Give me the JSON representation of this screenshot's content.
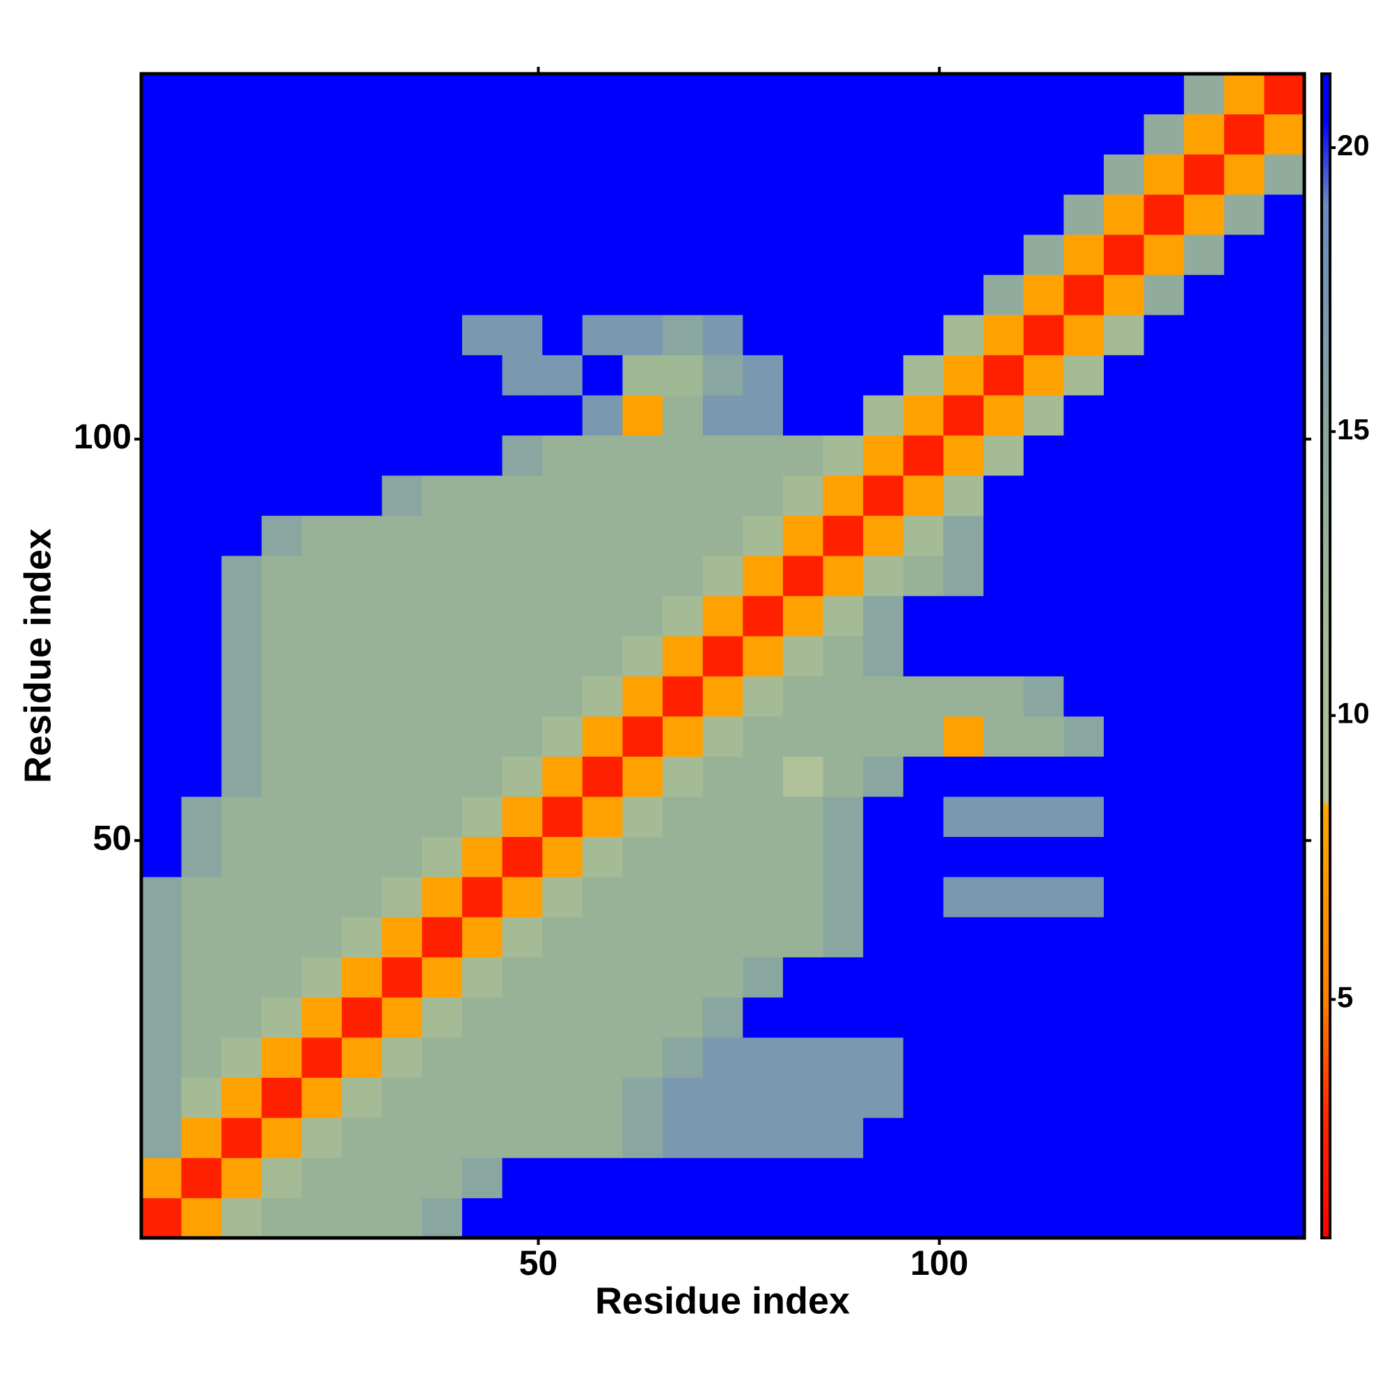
{
  "chart_data": {
    "type": "heatmap",
    "x_label": "Residue index",
    "y_label": "Residue index",
    "xlim": [
      0.5,
      145.5
    ],
    "ylim": [
      0.5,
      145.5
    ],
    "xticks": [
      50,
      100
    ],
    "yticks": [
      50,
      100
    ],
    "x": [
      3,
      8,
      13,
      18,
      23,
      28,
      33,
      38,
      43,
      48,
      53,
      58,
      63,
      68,
      73,
      78,
      83,
      88,
      93,
      98,
      103,
      108,
      113,
      118,
      123,
      128,
      133,
      138,
      143
    ],
    "y": [
      3,
      8,
      13,
      18,
      23,
      28,
      33,
      38,
      43,
      48,
      53,
      58,
      63,
      68,
      73,
      78,
      83,
      88,
      93,
      98,
      103,
      108,
      113,
      118,
      123,
      128,
      133,
      138,
      143
    ],
    "values": [
      [
        2.5,
        8,
        11,
        13,
        13,
        13,
        13,
        15,
        21,
        21,
        21,
        21,
        21,
        21,
        21,
        21,
        21,
        21,
        21,
        21,
        21,
        21,
        21,
        21,
        21,
        21,
        21,
        21,
        21
      ],
      [
        8,
        2.5,
        8,
        11,
        13,
        13,
        13,
        13,
        15,
        21,
        21,
        21,
        21,
        21,
        21,
        21,
        21,
        21,
        21,
        21,
        21,
        21,
        21,
        21,
        21,
        21,
        21,
        21,
        21
      ],
      [
        15,
        8,
        2.5,
        8,
        11,
        13,
        13,
        13,
        13,
        13,
        13,
        13,
        15,
        17,
        17,
        17,
        17,
        17,
        21,
        21,
        21,
        21,
        21,
        21,
        21,
        21,
        21,
        21,
        21
      ],
      [
        15,
        11,
        8,
        2.5,
        8,
        11,
        13,
        13,
        13,
        13,
        13,
        13,
        15,
        17,
        17,
        17,
        17,
        17,
        17,
        21,
        21,
        21,
        21,
        21,
        21,
        21,
        21,
        21,
        21
      ],
      [
        15,
        13,
        11,
        8,
        2.5,
        8,
        11,
        13,
        13,
        13,
        13,
        13,
        13,
        15,
        17,
        17,
        17,
        17,
        17,
        21,
        21,
        21,
        21,
        21,
        21,
        21,
        21,
        21,
        21
      ],
      [
        15,
        13,
        13,
        11,
        8,
        2.5,
        8,
        11,
        13,
        13,
        13,
        13,
        13,
        13,
        15,
        21,
        21,
        21,
        21,
        21,
        21,
        21,
        21,
        21,
        21,
        21,
        21,
        21,
        21
      ],
      [
        15,
        13,
        13,
        13,
        11,
        8,
        2.5,
        8,
        11,
        13,
        13,
        13,
        13,
        13,
        13,
        15,
        21,
        21,
        21,
        21,
        21,
        21,
        21,
        21,
        21,
        21,
        21,
        21,
        21
      ],
      [
        15,
        13,
        13,
        13,
        13,
        11,
        8,
        2.5,
        8,
        11,
        13,
        13,
        13,
        13,
        13,
        13,
        13,
        15,
        21,
        21,
        21,
        21,
        21,
        21,
        21,
        21,
        21,
        21,
        21
      ],
      [
        15,
        13,
        13,
        13,
        13,
        13,
        11,
        8,
        2.5,
        8,
        11,
        13,
        13,
        13,
        13,
        13,
        13,
        15,
        21,
        21,
        17,
        17,
        17,
        17,
        21,
        21,
        21,
        21,
        21
      ],
      [
        21,
        15,
        13,
        13,
        13,
        13,
        13,
        11,
        8,
        2.5,
        8,
        11,
        13,
        13,
        13,
        13,
        13,
        15,
        21,
        21,
        21,
        21,
        21,
        21,
        21,
        21,
        21,
        21,
        21
      ],
      [
        21,
        15,
        13,
        13,
        13,
        13,
        13,
        13,
        11,
        8,
        2.5,
        8,
        11,
        13,
        13,
        13,
        13,
        15,
        21,
        21,
        17,
        17,
        17,
        17,
        21,
        21,
        21,
        21,
        21
      ],
      [
        21,
        21,
        15,
        13,
        13,
        13,
        13,
        13,
        13,
        11,
        8,
        2.5,
        8,
        11,
        13,
        13,
        9,
        13,
        15,
        21,
        21,
        21,
        21,
        21,
        21,
        21,
        21,
        21,
        21
      ],
      [
        21,
        21,
        15,
        13,
        13,
        13,
        13,
        13,
        13,
        13,
        11,
        8,
        2.5,
        8,
        11,
        13,
        13,
        13,
        13,
        13,
        8,
        13,
        13,
        15,
        21,
        21,
        21,
        21,
        21
      ],
      [
        21,
        21,
        15,
        13,
        13,
        13,
        13,
        13,
        13,
        13,
        13,
        11,
        8,
        2.5,
        8,
        11,
        13,
        13,
        13,
        13,
        13,
        13,
        15,
        21,
        21,
        21,
        21,
        21,
        21
      ],
      [
        21,
        21,
        15,
        13,
        13,
        13,
        13,
        13,
        13,
        13,
        13,
        13,
        11,
        8,
        2.5,
        8,
        11,
        13,
        15,
        21,
        21,
        21,
        21,
        21,
        21,
        21,
        21,
        21,
        21
      ],
      [
        21,
        21,
        15,
        13,
        13,
        13,
        13,
        13,
        13,
        13,
        13,
        13,
        13,
        11,
        8,
        2.5,
        8,
        11,
        15,
        21,
        21,
        21,
        21,
        21,
        21,
        21,
        21,
        21,
        21
      ],
      [
        21,
        21,
        15,
        13,
        13,
        13,
        13,
        13,
        13,
        13,
        13,
        13,
        13,
        13,
        11,
        8,
        2.5,
        8,
        11,
        13,
        15,
        21,
        21,
        21,
        21,
        21,
        21,
        21,
        21
      ],
      [
        21,
        21,
        21,
        15,
        13,
        13,
        13,
        13,
        13,
        13,
        13,
        13,
        13,
        13,
        13,
        11,
        8,
        2.5,
        8,
        11,
        15,
        21,
        21,
        21,
        21,
        21,
        21,
        21,
        21
      ],
      [
        21,
        21,
        21,
        21,
        21,
        21,
        15,
        13,
        13,
        13,
        13,
        13,
        13,
        13,
        13,
        13,
        11,
        8,
        2.5,
        8,
        11,
        21,
        21,
        21,
        21,
        21,
        21,
        21,
        21
      ],
      [
        21,
        21,
        21,
        21,
        21,
        21,
        21,
        21,
        21,
        15,
        13,
        13,
        13,
        13,
        13,
        13,
        13,
        11,
        8,
        2.5,
        8,
        11,
        21,
        21,
        21,
        21,
        21,
        21,
        21
      ],
      [
        21,
        21,
        21,
        21,
        21,
        21,
        21,
        21,
        21,
        21,
        21,
        17,
        8,
        13,
        17,
        17,
        21,
        21,
        11,
        8,
        2.5,
        8,
        11,
        21,
        21,
        21,
        21,
        21,
        21
      ],
      [
        21,
        21,
        21,
        21,
        21,
        21,
        21,
        21,
        21,
        17,
        17,
        21,
        12,
        12,
        15,
        17,
        21,
        21,
        21,
        11,
        8,
        2.5,
        8,
        11,
        21,
        21,
        21,
        21,
        21
      ],
      [
        21,
        21,
        21,
        21,
        21,
        21,
        21,
        21,
        17,
        17,
        21,
        17,
        17,
        15,
        17,
        21,
        21,
        21,
        21,
        21,
        11,
        8,
        2.5,
        8,
        11,
        21,
        21,
        21,
        21
      ],
      [
        21,
        21,
        21,
        21,
        21,
        21,
        21,
        21,
        21,
        21,
        21,
        21,
        21,
        21,
        21,
        21,
        21,
        21,
        21,
        21,
        21,
        14,
        8,
        2.5,
        8,
        14,
        21,
        21,
        21
      ],
      [
        21,
        21,
        21,
        21,
        21,
        21,
        21,
        21,
        21,
        21,
        21,
        21,
        21,
        21,
        21,
        21,
        21,
        21,
        21,
        21,
        21,
        21,
        14,
        8,
        2.5,
        8,
        14,
        21,
        21
      ],
      [
        21,
        21,
        21,
        21,
        21,
        21,
        21,
        21,
        21,
        21,
        21,
        21,
        21,
        21,
        21,
        21,
        21,
        21,
        21,
        21,
        21,
        21,
        21,
        14,
        8,
        2.5,
        8,
        14,
        21
      ],
      [
        21,
        21,
        21,
        21,
        21,
        21,
        21,
        21,
        21,
        21,
        21,
        21,
        21,
        21,
        21,
        21,
        21,
        21,
        21,
        21,
        21,
        21,
        21,
        21,
        14,
        8,
        2.5,
        8,
        14
      ],
      [
        21,
        21,
        21,
        21,
        21,
        21,
        21,
        21,
        21,
        21,
        21,
        21,
        21,
        21,
        21,
        21,
        21,
        21,
        21,
        21,
        21,
        21,
        21,
        21,
        21,
        14,
        8,
        2.5,
        8
      ],
      [
        21,
        21,
        21,
        21,
        21,
        21,
        21,
        21,
        21,
        21,
        21,
        21,
        21,
        21,
        21,
        21,
        21,
        21,
        21,
        21,
        21,
        21,
        21,
        21,
        21,
        21,
        14,
        8,
        2.5
      ]
    ],
    "colorbar_lim": [
      0.8,
      21.3
    ],
    "colorbar_ticks": [
      5,
      10,
      15,
      20
    ],
    "colorscale": [
      [
        0.8,
        "#ff0000"
      ],
      [
        3,
        "#ff2a00"
      ],
      [
        5,
        "#ff8000"
      ],
      [
        8.4,
        "#ffa500"
      ],
      [
        8.5,
        "#b4c39a"
      ],
      [
        12,
        "#9fb894"
      ],
      [
        15,
        "#8aa6a0"
      ],
      [
        19,
        "#6a8cc0"
      ],
      [
        20.5,
        "#0000ff"
      ],
      [
        21.3,
        "#0000ff"
      ]
    ]
  }
}
